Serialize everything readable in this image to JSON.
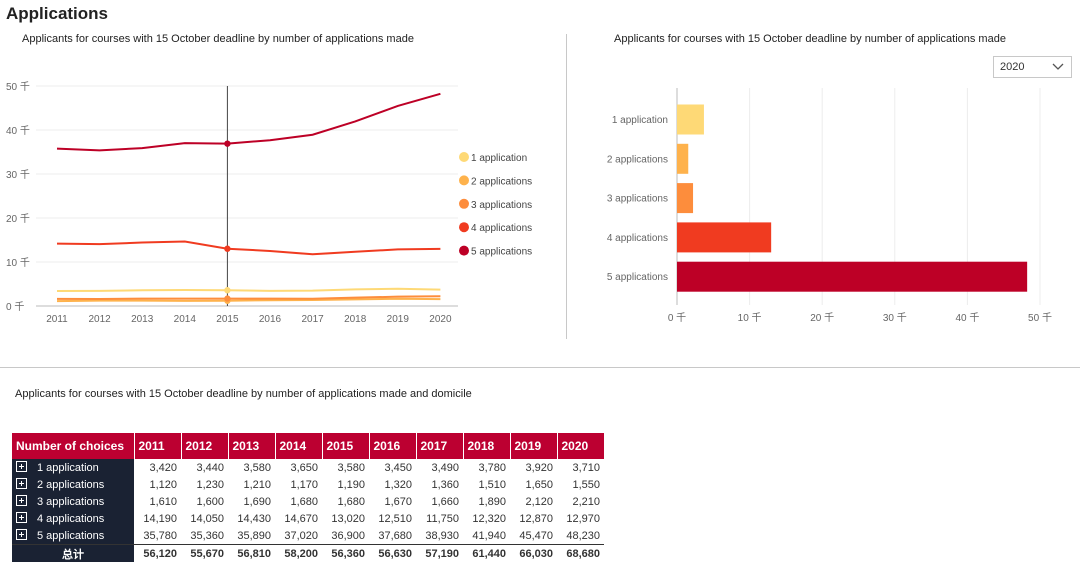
{
  "page_title": "Applications",
  "dropdown": {
    "selected": "2020"
  },
  "colors": {
    "1 application": "#fed976",
    "2 applications": "#feb24c",
    "3 applications": "#fd8d3c",
    "4 applications": "#f03b20",
    "5 applications": "#bd0026",
    "header_bg": "#bc0031",
    "row_label_bg": "#1a2233"
  },
  "chart_data": [
    {
      "type": "line",
      "title": "Applicants for courses with 15 October deadline  by number of applications made",
      "x": [
        "2011",
        "2012",
        "2013",
        "2014",
        "2015",
        "2016",
        "2017",
        "2018",
        "2019",
        "2020"
      ],
      "y_ticks": [
        "0 千",
        "10 千",
        "20 千",
        "30 千",
        "40 千",
        "50 千"
      ],
      "ylim": [
        0,
        50000
      ],
      "highlight_x": "2015",
      "legend_position": "right",
      "series": [
        {
          "name": "1 application",
          "values": [
            3420,
            3440,
            3580,
            3650,
            3580,
            3450,
            3490,
            3780,
            3920,
            3710
          ]
        },
        {
          "name": "2 applications",
          "values": [
            1120,
            1230,
            1210,
            1170,
            1190,
            1320,
            1360,
            1510,
            1650,
            1550
          ]
        },
        {
          "name": "3 applications",
          "values": [
            1610,
            1600,
            1690,
            1680,
            1680,
            1670,
            1660,
            1890,
            2120,
            2210
          ]
        },
        {
          "name": "4 applications",
          "values": [
            14190,
            14050,
            14430,
            14670,
            13020,
            12510,
            11750,
            12320,
            12870,
            12970
          ]
        },
        {
          "name": "5 applications",
          "values": [
            35780,
            35360,
            35890,
            37020,
            36900,
            37680,
            38930,
            41940,
            45470,
            48230
          ]
        }
      ]
    },
    {
      "type": "bar",
      "orientation": "horizontal",
      "title": "Applicants for courses with 15 October deadline  by number of applications made",
      "categories": [
        "1 application",
        "2 applications",
        "3 applications",
        "4 applications",
        "5 applications"
      ],
      "values": [
        3710,
        1550,
        2210,
        12970,
        48230
      ],
      "x_ticks": [
        "0 千",
        "10 千",
        "20 千",
        "30 千",
        "40 千",
        "50 千"
      ],
      "xlim": [
        0,
        50000
      ]
    },
    {
      "type": "table",
      "title": "Applicants for courses with 15 October deadline  by number of applications made and domicile",
      "header": [
        "Number of choices",
        "2011",
        "2012",
        "2013",
        "2014",
        "2015",
        "2016",
        "2017",
        "2018",
        "2019",
        "2020"
      ],
      "rows": [
        {
          "label": "1 application",
          "cells": [
            "3,420",
            "3,440",
            "3,580",
            "3,650",
            "3,580",
            "3,450",
            "3,490",
            "3,780",
            "3,920",
            "3,710"
          ]
        },
        {
          "label": "2 applications",
          "cells": [
            "1,120",
            "1,230",
            "1,210",
            "1,170",
            "1,190",
            "1,320",
            "1,360",
            "1,510",
            "1,650",
            "1,550"
          ]
        },
        {
          "label": "3 applications",
          "cells": [
            "1,610",
            "1,600",
            "1,690",
            "1,680",
            "1,680",
            "1,670",
            "1,660",
            "1,890",
            "2,120",
            "2,210"
          ]
        },
        {
          "label": "4 applications",
          "cells": [
            "14,190",
            "14,050",
            "14,430",
            "14,670",
            "13,020",
            "12,510",
            "11,750",
            "12,320",
            "12,870",
            "12,970"
          ]
        },
        {
          "label": "5 applications",
          "cells": [
            "35,780",
            "35,360",
            "35,890",
            "37,020",
            "36,900",
            "37,680",
            "38,930",
            "41,940",
            "45,470",
            "48,230"
          ]
        }
      ],
      "total": {
        "label": "总计",
        "cells": [
          "56,120",
          "55,670",
          "56,810",
          "58,200",
          "56,360",
          "56,630",
          "57,190",
          "61,440",
          "66,030",
          "68,680"
        ]
      }
    }
  ]
}
